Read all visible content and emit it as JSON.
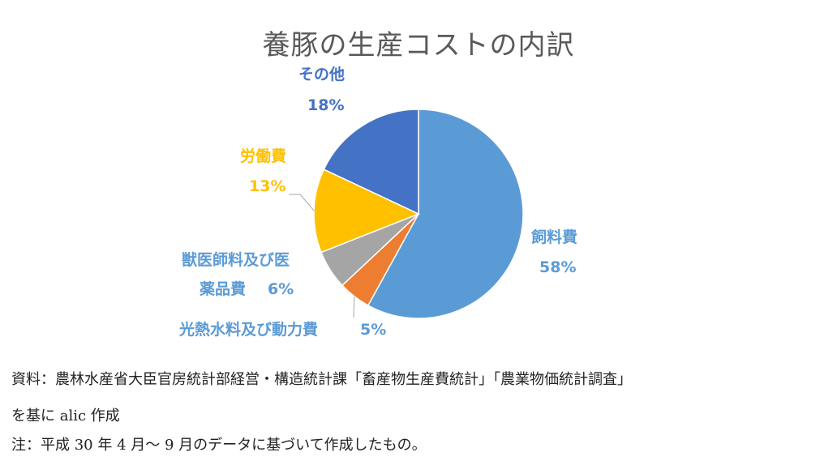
{
  "chart_data": {
    "type": "pie",
    "title": "養豚の生産コストの内訳",
    "slices": [
      {
        "name": "飼料費",
        "value": 58,
        "label_value": "58%",
        "color": "#5B9BD5"
      },
      {
        "name": "光熱水料及び動力費",
        "value": 5,
        "label_value": "5%",
        "color": "#ED7D31"
      },
      {
        "name": "獣医師料及び医薬品費",
        "name_line1": "獣医師料及び医",
        "name_line2": "薬品費",
        "value": 6,
        "label_value": "6%",
        "color": "#A5A5A5"
      },
      {
        "name": "労働費",
        "value": 13,
        "label_value": "13%",
        "color": "#FFC000"
      },
      {
        "name": "その他",
        "value": 18,
        "label_value": "18%",
        "color": "#4472C4"
      }
    ]
  },
  "notes": {
    "source_line1": "資料：農林水産省大臣官房統計部経営・構造統計課「畜産物生産費統計」「農業物価統計調査」",
    "source_line2": "を基に alic 作成",
    "note": "注：平成 30 年 4 月～ 9 月のデータに基づいて作成したもの。"
  }
}
